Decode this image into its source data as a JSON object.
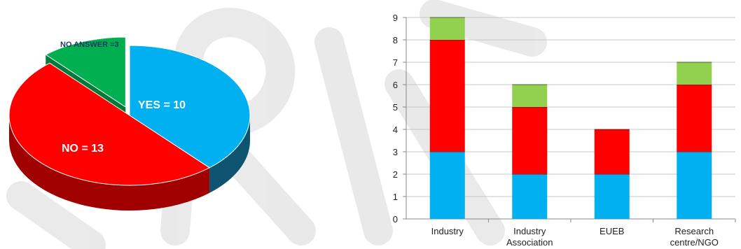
{
  "colors": {
    "yes": "#00b0f0",
    "yes_dark": "#0e5470",
    "no": "#ff0000",
    "no_dark": "#a00000",
    "no_answer": "#00b050",
    "no_answer_dark": "#007a38",
    "bar_blue": "#00b0f0",
    "bar_red": "#ff0000",
    "bar_green": "#92d050"
  },
  "chart_data": [
    {
      "type": "pie",
      "labels": [
        "YES = 10",
        "NO = 13",
        "NO ANSWER =3"
      ],
      "values": [
        10,
        13,
        3
      ]
    },
    {
      "type": "bar",
      "stacked": true,
      "categories": [
        [
          "Industry"
        ],
        [
          "Industry",
          "Association"
        ],
        [
          "EUEB"
        ],
        [
          "Research",
          "centre/NGO"
        ]
      ],
      "series": [
        {
          "color": "#00b0f0",
          "values": [
            3,
            2,
            2,
            3
          ]
        },
        {
          "color": "#ff0000",
          "values": [
            5,
            3,
            2,
            3
          ]
        },
        {
          "color": "#92d050",
          "values": [
            1,
            1,
            0,
            1
          ]
        }
      ],
      "ylim": [
        0,
        9
      ],
      "yticks": [
        "0",
        "1",
        "2",
        "3",
        "4",
        "5",
        "6",
        "7",
        "8",
        "9"
      ],
      "grid": true
    }
  ]
}
